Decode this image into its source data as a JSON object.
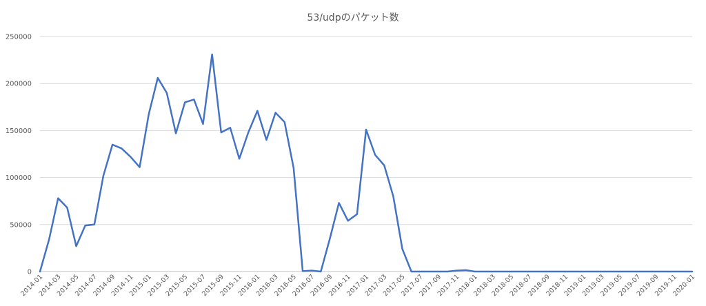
{
  "chart_data": {
    "type": "line",
    "title": "53/udpのパケット数",
    "xlabel": "",
    "ylabel": "",
    "ylim": [
      0,
      250000
    ],
    "yticks": [
      0,
      50000,
      100000,
      150000,
      200000,
      250000
    ],
    "ytick_labels": [
      "0",
      "50000",
      "100000",
      "150000",
      "200000",
      "250000"
    ],
    "grid": true,
    "legend": "none",
    "colors": {
      "series": "#4472c4",
      "grid": "#d9d9d9",
      "text": "#595959"
    },
    "categories": [
      "2014-01",
      "2014-02",
      "2014-03",
      "2014-04",
      "2014-05",
      "2014-06",
      "2014-07",
      "2014-08",
      "2014-09",
      "2014-10",
      "2014-11",
      "2014-12",
      "2015-01",
      "2015-02",
      "2015-03",
      "2015-04",
      "2015-05",
      "2015-06",
      "2015-07",
      "2015-08",
      "2015-09",
      "2015-10",
      "2015-11",
      "2015-12",
      "2016-01",
      "2016-02",
      "2016-03",
      "2016-04",
      "2016-05",
      "2016-06",
      "2016-07",
      "2016-08",
      "2016-09",
      "2016-10",
      "2016-11",
      "2016-12",
      "2017-01",
      "2017-02",
      "2017-03",
      "2017-04",
      "2017-05",
      "2017-06",
      "2017-07",
      "2017-08",
      "2017-09",
      "2017-10",
      "2017-11",
      "2017-12",
      "2018-01",
      "2018-02",
      "2018-03",
      "2018-04",
      "2018-05",
      "2018-06",
      "2018-07",
      "2018-08",
      "2018-09",
      "2018-10",
      "2018-11",
      "2018-12",
      "2019-01",
      "2019-02",
      "2019-03",
      "2019-04",
      "2019-05",
      "2019-06",
      "2019-07",
      "2019-08",
      "2019-09",
      "2019-10",
      "2019-11",
      "2019-12",
      "2020-01"
    ],
    "xtick_labels": [
      "2014-01",
      "2014-03",
      "2014-05",
      "2014-07",
      "2014-09",
      "2014-11",
      "2015-01",
      "2015-03",
      "2015-05",
      "2015-07",
      "2015-09",
      "2015-11",
      "2016-01",
      "2016-03",
      "2016-05",
      "2016-07",
      "2016-09",
      "2016-11",
      "2017-01",
      "2017-03",
      "2017-05",
      "2017-07",
      "2017-09",
      "2017-11",
      "2018-01",
      "2018-03",
      "2018-05",
      "2018-07",
      "2018-09",
      "2018-11",
      "2019-01",
      "2019-03",
      "2019-05",
      "2019-07",
      "2019-09",
      "2019-11",
      "2020-01"
    ],
    "series": [
      {
        "name": "",
        "values": [
          0,
          34000,
          78000,
          68000,
          27000,
          49000,
          50000,
          102000,
          135000,
          131000,
          122000,
          111000,
          167000,
          206000,
          190000,
          147000,
          180000,
          183000,
          157000,
          231000,
          148000,
          153000,
          120000,
          148000,
          171000,
          140000,
          169000,
          159000,
          110000,
          500,
          1000,
          0,
          35000,
          73000,
          54000,
          61000,
          151000,
          124000,
          113000,
          80000,
          24000,
          0,
          0,
          0,
          0,
          0,
          1000,
          1500,
          0,
          0,
          0,
          0,
          0,
          0,
          0,
          0,
          0,
          0,
          0,
          0,
          0,
          0,
          0,
          0,
          0,
          0,
          0,
          0,
          0,
          0,
          0,
          0,
          0
        ]
      }
    ]
  }
}
